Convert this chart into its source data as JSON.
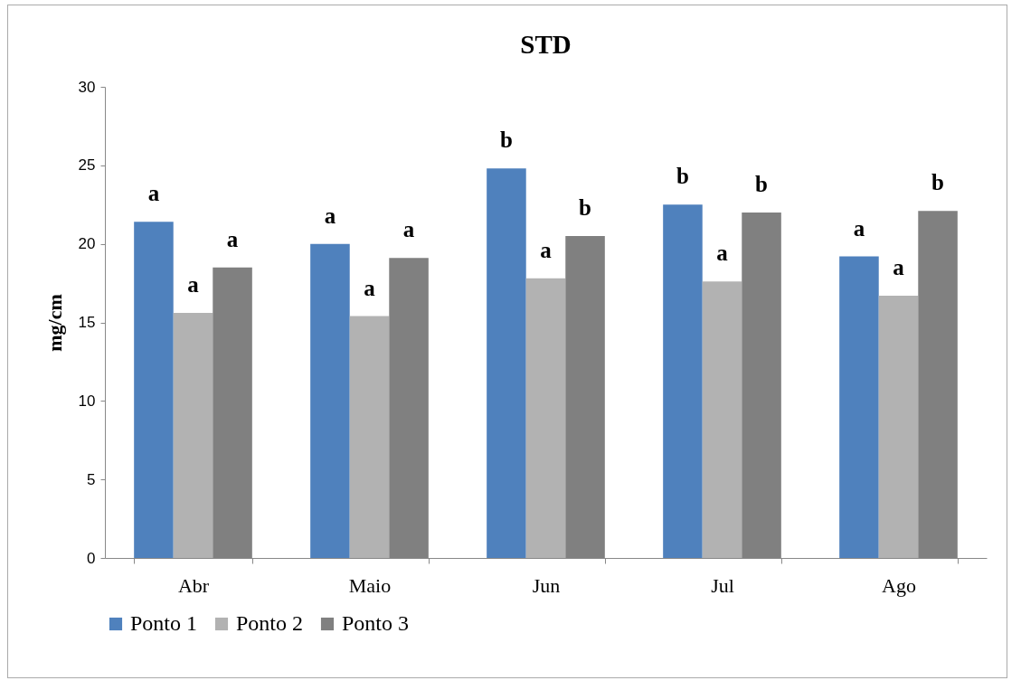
{
  "chart_data": {
    "type": "bar",
    "title": "STD",
    "ylabel": "mg/cm",
    "categories": [
      "Abr",
      "Maio",
      "Jun",
      "Jul",
      "Ago"
    ],
    "series": [
      {
        "name": "Ponto 1",
        "color": "#4f81bd",
        "values": [
          21.4,
          20.0,
          24.8,
          22.5,
          19.2
        ]
      },
      {
        "name": "Ponto 2",
        "color": "#b2b2b2",
        "values": [
          15.6,
          15.4,
          17.8,
          17.6,
          16.7
        ]
      },
      {
        "name": "Ponto 3",
        "color": "#808080",
        "values": [
          18.5,
          19.1,
          20.5,
          22.0,
          22.1
        ]
      }
    ],
    "ylim": [
      0,
      30
    ],
    "yticks": [
      0,
      5,
      10,
      15,
      20,
      25,
      30
    ],
    "grid": false,
    "legend": "bottom",
    "annotations": [
      "a",
      "a",
      "a",
      "a",
      "a",
      "a",
      "b",
      "a",
      "b",
      "b",
      "a",
      "b",
      "a",
      "a",
      "b"
    ]
  }
}
